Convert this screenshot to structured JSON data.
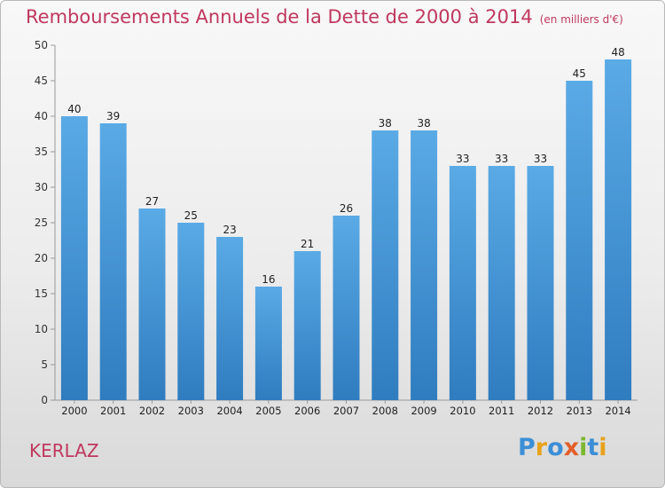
{
  "chart_data": {
    "type": "bar",
    "title": "Remboursements Annuels de la Dette de 2000 à 2014",
    "subtitle": "(en milliers d'€)",
    "categories": [
      "2000",
      "2001",
      "2002",
      "2003",
      "2004",
      "2005",
      "2006",
      "2007",
      "2008",
      "2009",
      "2010",
      "2011",
      "2012",
      "2013",
      "2014"
    ],
    "values": [
      40,
      39,
      27,
      25,
      23,
      16,
      21,
      26,
      38,
      38,
      33,
      33,
      33,
      45,
      48
    ],
    "ylim": [
      0,
      50
    ],
    "yticks": [
      0,
      5,
      10,
      15,
      20,
      25,
      30,
      35,
      40,
      45,
      50
    ],
    "grid": false,
    "colors": {
      "bar_top": "#5aaae6",
      "bar_bottom": "#2f7cbf",
      "title": "#c0385e"
    }
  },
  "footer": {
    "place": "KERLAZ",
    "logo_text": "Proxiti",
    "logo_letters": [
      {
        "ch": "P",
        "color": "#3b8fd6"
      },
      {
        "ch": "r",
        "color": "#e8a21b"
      },
      {
        "ch": "o",
        "color": "#3b8fd6"
      },
      {
        "ch": "x",
        "color": "#e35f2a"
      },
      {
        "ch": "i",
        "color": "#7cb82f"
      },
      {
        "ch": "t",
        "color": "#3b8fd6"
      },
      {
        "ch": "i",
        "color": "#e8a21b"
      }
    ]
  }
}
